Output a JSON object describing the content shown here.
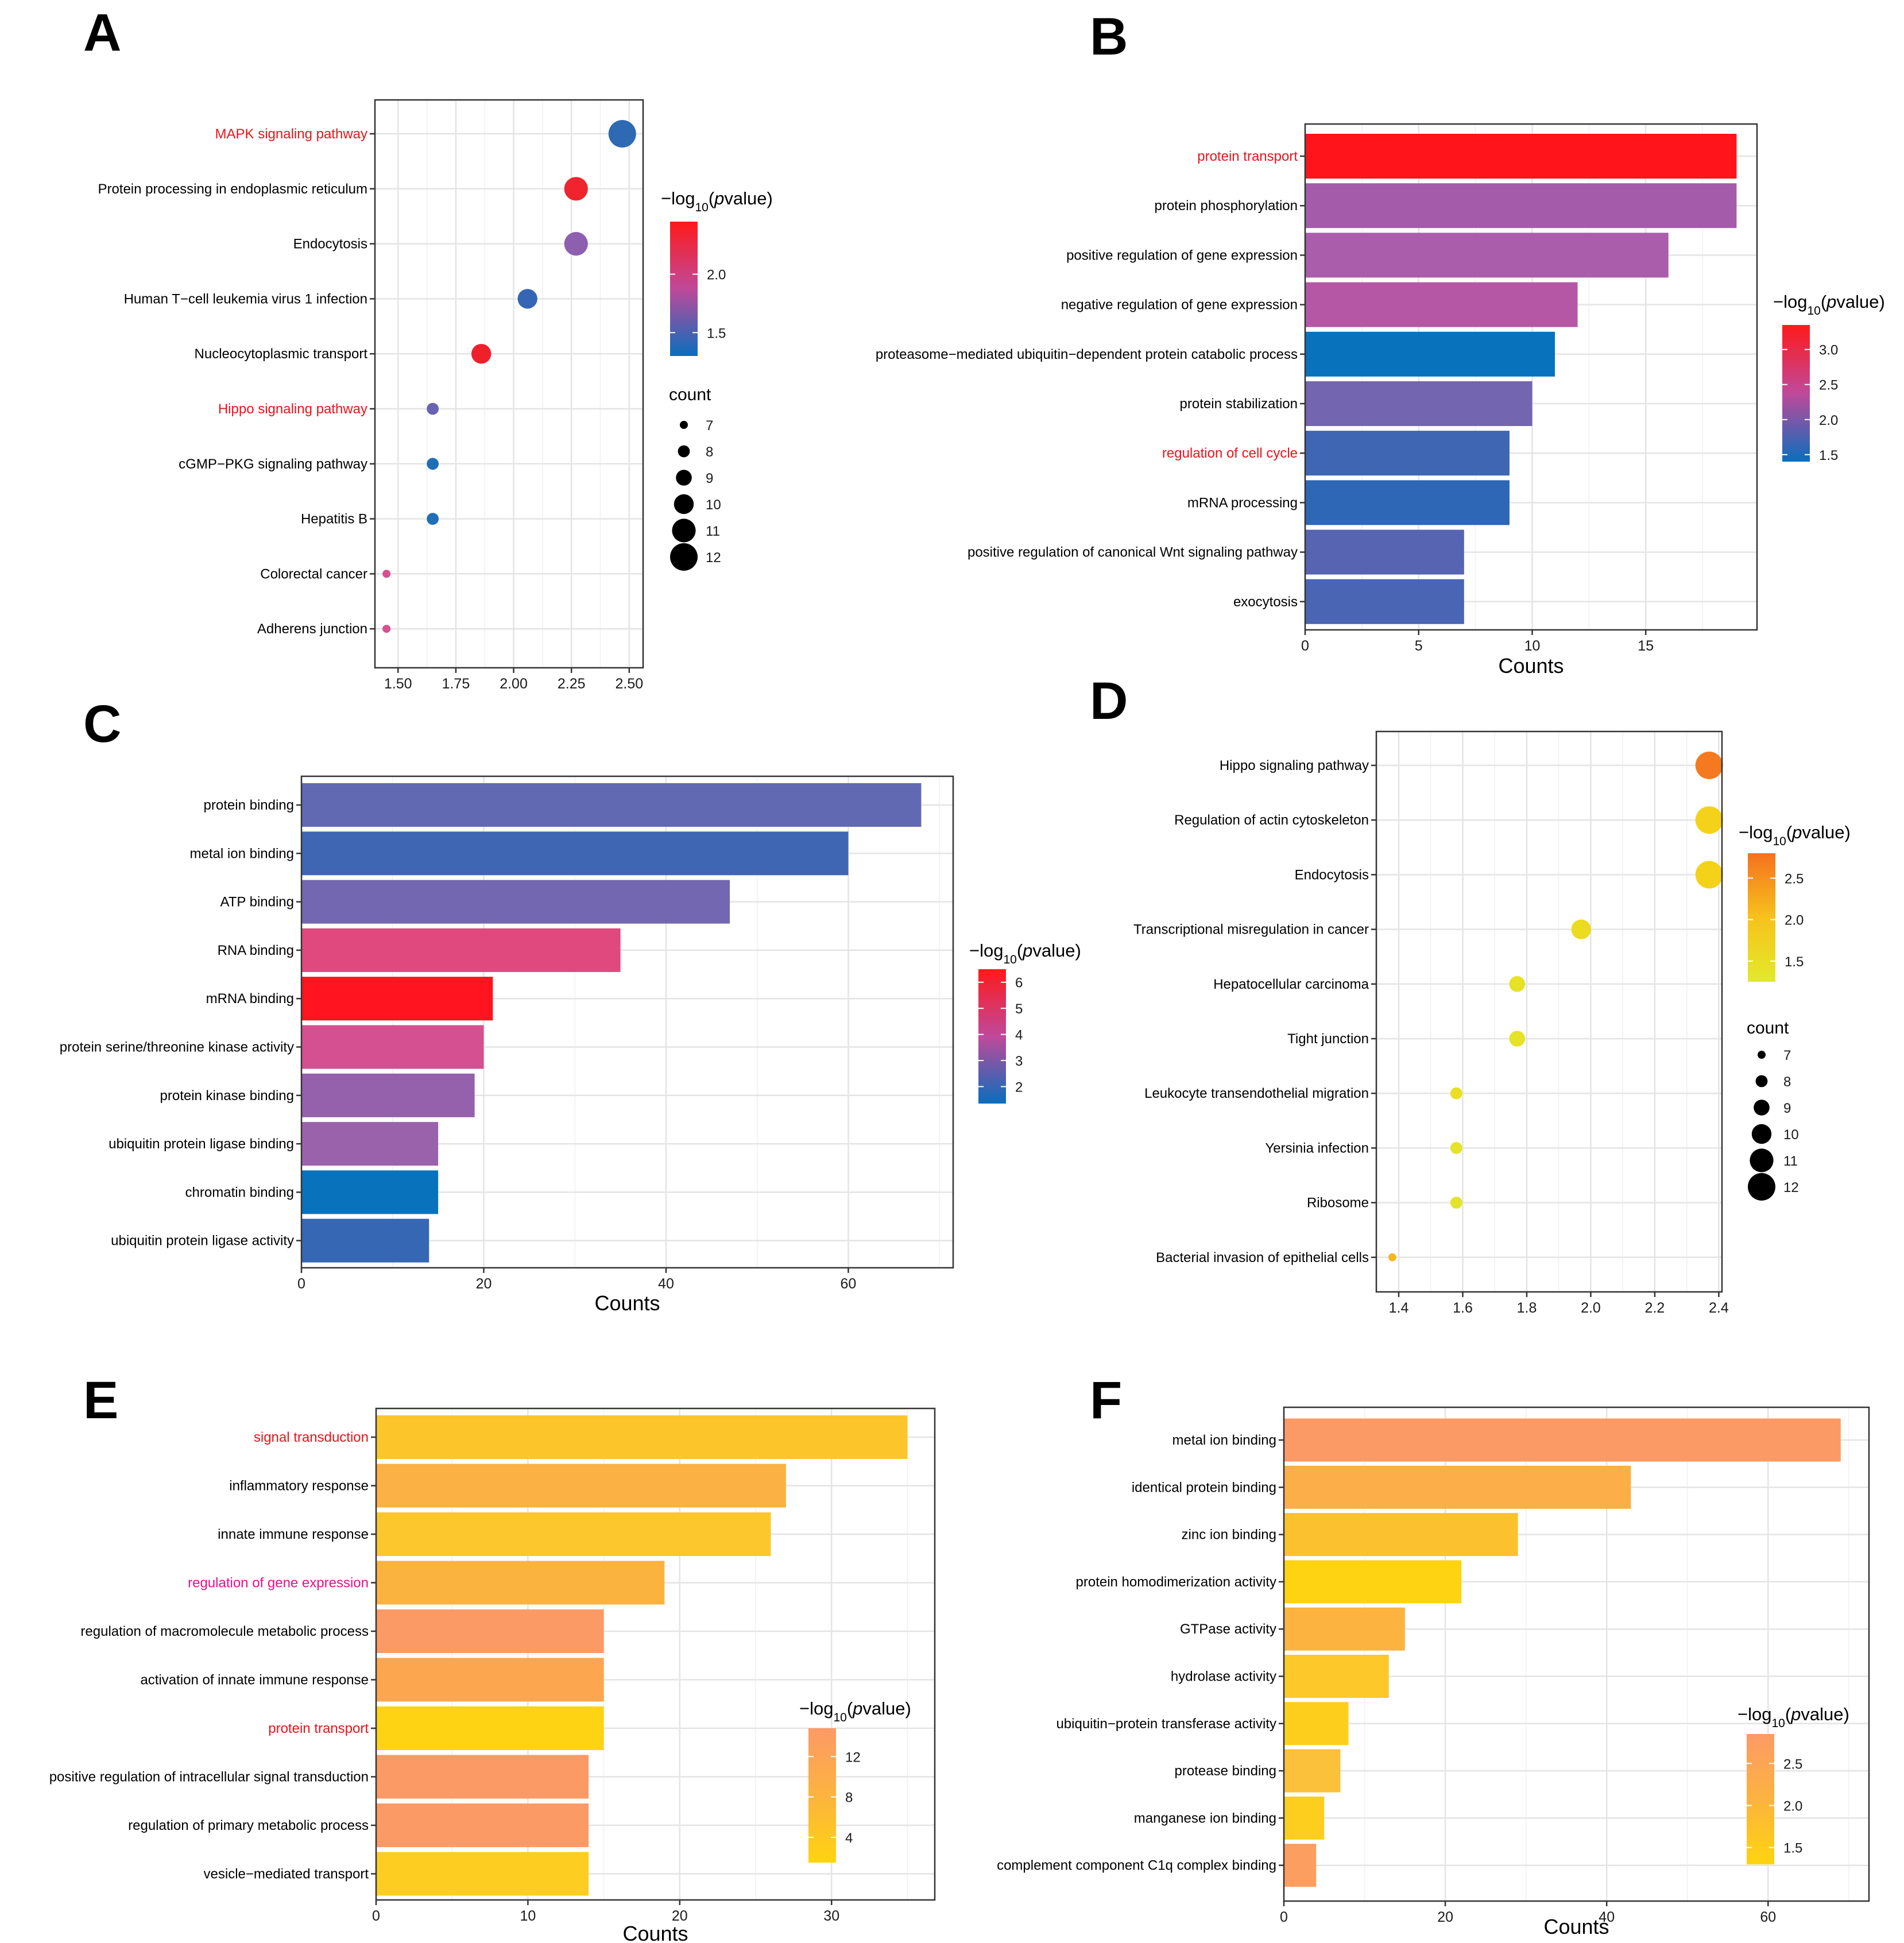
{
  "legend_title": {
    "base": "−log",
    "sub": "10",
    "open": "(",
    "p": "p",
    "rest": "value)"
  },
  "chart_data": [
    {
      "id": "A",
      "panel_label": "A",
      "type": "scatter",
      "xlabel": "",
      "xlim": [
        1.4,
        2.56
      ],
      "xticks": [
        1.5,
        1.75,
        2.0,
        2.25,
        2.5
      ],
      "xtick_labels": [
        "1.50",
        "1.75",
        "2.00",
        "2.25",
        "2.50"
      ],
      "points": [
        {
          "term": "MAPK signaling pathway",
          "x": 2.47,
          "count": 12,
          "color": "#2E6AB4",
          "label_color": "#E8141C"
        },
        {
          "term": "Protein processing in endoplasmic reticulum",
          "x": 2.27,
          "count": 11,
          "color": "#F0242E",
          "label_color": "#000000"
        },
        {
          "term": "Endocytosis",
          "x": 2.27,
          "count": 11,
          "color": "#8D5FAE",
          "label_color": "#000000"
        },
        {
          "term": "Human T−cell leukemia virus 1 infection",
          "x": 2.06,
          "count": 10,
          "color": "#3566B5",
          "label_color": "#000000"
        },
        {
          "term": "Nucleocytoplasmic transport",
          "x": 1.86,
          "count": 10,
          "color": "#F0202A",
          "label_color": "#000000"
        },
        {
          "term": "Hippo signaling pathway",
          "x": 1.65,
          "count": 8,
          "color": "#6A62B2",
          "label_color": "#E8141C"
        },
        {
          "term": "cGMP−PKG signaling pathway",
          "x": 1.65,
          "count": 8,
          "color": "#1F6EB8",
          "label_color": "#000000"
        },
        {
          "term": "Hepatitis B",
          "x": 1.65,
          "count": 8,
          "color": "#1F6EB8",
          "label_color": "#000000"
        },
        {
          "term": "Colorectal cancer",
          "x": 1.45,
          "count": 7,
          "color": "#D8508F",
          "label_color": "#000000"
        },
        {
          "term": "Adherens junction",
          "x": 1.45,
          "count": 7,
          "color": "#D8508F",
          "label_color": "#000000"
        }
      ],
      "color_legend": {
        "ticks": [
          "2.0",
          "1.5"
        ],
        "tick_values": [
          2.0,
          1.5
        ],
        "range": [
          1.3,
          2.45
        ],
        "colors": [
          "#FF1A1A",
          "#C0499A",
          "#0A6EBD"
        ]
      },
      "size_legend": {
        "title": "count",
        "values": [
          7,
          8,
          9,
          10,
          11,
          12
        ]
      }
    },
    {
      "id": "B",
      "panel_label": "B",
      "type": "bar",
      "xlabel": "Counts",
      "xlim": [
        0,
        19.9
      ],
      "xticks": [
        0,
        5,
        10,
        15
      ],
      "xtick_labels": [
        "0",
        "5",
        "10",
        "15"
      ],
      "categories": [
        "protein transport",
        "protein phosphorylation",
        "positive regulation of gene expression",
        "negative regulation of gene expression",
        "proteasome−mediated ubiquitin−dependent protein catabolic process",
        "protein stabilization",
        "regulation of cell cycle",
        "mRNA processing",
        "positive regulation of canonical Wnt signaling pathway",
        "exocytosis"
      ],
      "values": [
        19,
        19,
        16,
        12,
        11,
        10,
        9,
        9,
        7,
        7
      ],
      "colors": [
        "#FF141C",
        "#A45CAA",
        "#AA5DAA",
        "#B657A6",
        "#0872BC",
        "#7365B0",
        "#3E66B3",
        "#2D67B5",
        "#5664B2",
        "#4A65B3"
      ],
      "label_colors": [
        "#E8141C",
        "#000000",
        "#000000",
        "#000000",
        "#000000",
        "#000000",
        "#E8141C",
        "#000000",
        "#000000",
        "#000000"
      ],
      "color_legend": {
        "ticks": [
          "3.0",
          "2.5",
          "2.0",
          "1.5"
        ],
        "tick_values": [
          3.0,
          2.5,
          2.0,
          1.5
        ],
        "range": [
          1.4,
          3.35
        ],
        "colors": [
          "#FF1A1A",
          "#C0499A",
          "#0A6EBD"
        ]
      }
    },
    {
      "id": "C",
      "panel_label": "C",
      "type": "bar",
      "xlabel": "Counts",
      "xlim": [
        0,
        71.5
      ],
      "xticks": [
        0,
        20,
        40,
        60
      ],
      "xtick_labels": [
        "0",
        "20",
        "40",
        "60"
      ],
      "categories": [
        "protein binding",
        "metal ion binding",
        "ATP binding",
        "RNA binding",
        "mRNA binding",
        "protein serine/threonine kinase activity",
        "protein kinase binding",
        "ubiquitin protein ligase binding",
        "chromatin binding",
        "ubiquitin protein ligase activity"
      ],
      "values": [
        68,
        60,
        47,
        35,
        21,
        20,
        19,
        15,
        15,
        14
      ],
      "colors": [
        "#6169B3",
        "#3F66B3",
        "#7467B1",
        "#E0497E",
        "#FF1420",
        "#D55090",
        "#9560AC",
        "#9B62AC",
        "#0872BC",
        "#3567B5"
      ],
      "label_colors": [
        "#000000",
        "#000000",
        "#000000",
        "#000000",
        "#000000",
        "#000000",
        "#000000",
        "#000000",
        "#000000",
        "#000000"
      ],
      "color_legend": {
        "ticks": [
          "6",
          "5",
          "4",
          "3",
          "2"
        ],
        "tick_values": [
          6,
          5,
          4,
          3,
          2
        ],
        "range": [
          1.35,
          6.5
        ],
        "colors": [
          "#FF1A1A",
          "#C0499A",
          "#0A6EBD"
        ]
      }
    },
    {
      "id": "D",
      "panel_label": "D",
      "type": "scatter",
      "xlabel": "",
      "xlim": [
        1.33,
        2.41
      ],
      "xticks": [
        1.4,
        1.6,
        1.8,
        2.0,
        2.2,
        2.4
      ],
      "xtick_labels": [
        "1.4",
        "1.6",
        "1.8",
        "2.0",
        "2.2",
        "2.4"
      ],
      "points": [
        {
          "term": "Hippo signaling pathway",
          "x": 2.37,
          "count": 12,
          "color": "#F57A1F",
          "label_color": "#000000"
        },
        {
          "term": "Regulation of actin cytoskeleton",
          "x": 2.37,
          "count": 12,
          "color": "#F5D21A",
          "label_color": "#000000"
        },
        {
          "term": "Endocytosis",
          "x": 2.37,
          "count": 12,
          "color": "#F5D21A",
          "label_color": "#000000"
        },
        {
          "term": "Transcriptional misregulation in cancer",
          "x": 1.97,
          "count": 10,
          "color": "#EBDC1F",
          "label_color": "#000000"
        },
        {
          "term": "Hepatocellular carcinoma",
          "x": 1.77,
          "count": 9,
          "color": "#E6E225",
          "label_color": "#000000"
        },
        {
          "term": "Tight junction",
          "x": 1.77,
          "count": 9,
          "color": "#E6E225",
          "label_color": "#000000"
        },
        {
          "term": "Leukocyte transendothelial migration",
          "x": 1.58,
          "count": 8,
          "color": "#ECDE22",
          "label_color": "#000000"
        },
        {
          "term": "Yersinia infection",
          "x": 1.58,
          "count": 8,
          "color": "#E4E328",
          "label_color": "#000000"
        },
        {
          "term": "Ribosome",
          "x": 1.58,
          "count": 8,
          "color": "#E4E328",
          "label_color": "#000000"
        },
        {
          "term": "Bacterial invasion of epithelial cells",
          "x": 1.38,
          "count": 7,
          "color": "#F5B91E",
          "label_color": "#000000"
        }
      ],
      "color_legend": {
        "ticks": [
          "2.5",
          "2.0",
          "1.5"
        ],
        "tick_values": [
          2.5,
          2.0,
          1.5
        ],
        "range": [
          1.25,
          2.8
        ],
        "colors": [
          "#F5711F",
          "#F7C21C",
          "#E2EA2A"
        ]
      },
      "size_legend": {
        "title": "count",
        "values": [
          7,
          8,
          9,
          10,
          11,
          12
        ]
      }
    },
    {
      "id": "E",
      "panel_label": "E",
      "type": "bar",
      "xlabel": "Counts",
      "xlim": [
        0,
        36.8
      ],
      "xticks": [
        0,
        10,
        20,
        30
      ],
      "xtick_labels": [
        "0",
        "10",
        "20",
        "30"
      ],
      "categories": [
        "signal transduction",
        "inflammatory response",
        "innate immune response",
        "regulation of gene expression",
        "regulation of macromolecule metabolic process",
        "activation of innate immune response",
        "protein transport",
        "positive regulation of intracellular signal transduction",
        "regulation of primary metabolic process",
        "vesicle−mediated transport"
      ],
      "values": [
        35,
        27,
        26,
        19,
        15,
        15,
        15,
        14,
        14,
        14
      ],
      "colors": [
        "#FCC62A",
        "#FBB143",
        "#FBC72C",
        "#FBB340",
        "#FC9A66",
        "#FCA64F",
        "#FED313",
        "#FC9A66",
        "#FC9A66",
        "#FDCD21"
      ],
      "label_colors": [
        "#E8141C",
        "#000000",
        "#000000",
        "#E0128C",
        "#000000",
        "#000000",
        "#E8141C",
        "#000000",
        "#000000",
        "#000000"
      ],
      "color_legend": {
        "ticks": [
          "12",
          "8",
          "4"
        ],
        "tick_values": [
          12,
          8,
          4
        ],
        "range": [
          1.5,
          14.8
        ],
        "colors": [
          "#FC9A66",
          "#FCB33F",
          "#FED40F"
        ]
      }
    },
    {
      "id": "F",
      "panel_label": "F",
      "type": "bar",
      "xlabel": "Counts",
      "xlim": [
        0,
        72.5
      ],
      "xticks": [
        0,
        20,
        40,
        60
      ],
      "xtick_labels": [
        "0",
        "20",
        "40",
        "60"
      ],
      "categories": [
        "metal ion binding",
        "identical protein binding",
        "zinc ion binding",
        "protein homodimerization activity",
        "GTPase activity",
        "hydrolase activity",
        "ubiquitin−protein transferase activity",
        "protease binding",
        "manganese ion binding",
        "complement component C1q complex binding"
      ],
      "values": [
        69,
        43,
        29,
        22,
        15,
        13,
        8,
        7,
        5,
        4
      ],
      "colors": [
        "#FC9A66",
        "#FCAE49",
        "#FCC12F",
        "#FED311",
        "#FCB33F",
        "#FCC82A",
        "#FDCF1C",
        "#FBC13A",
        "#FDCE1E",
        "#FC9E60"
      ],
      "label_colors": [
        "#000000",
        "#000000",
        "#000000",
        "#000000",
        "#000000",
        "#000000",
        "#000000",
        "#000000",
        "#000000",
        "#000000"
      ],
      "color_legend": {
        "ticks": [
          "2.5",
          "2.0",
          "1.5"
        ],
        "tick_values": [
          2.5,
          2.0,
          1.5
        ],
        "range": [
          1.3,
          2.85
        ],
        "colors": [
          "#FC9A66",
          "#FCB33F",
          "#FED40F"
        ]
      }
    }
  ]
}
